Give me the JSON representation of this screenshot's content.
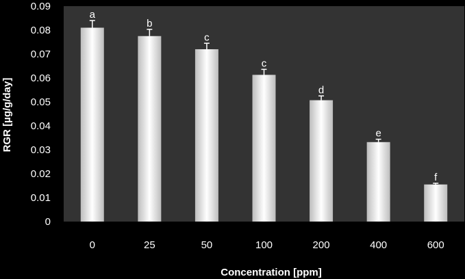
{
  "chart_data": {
    "type": "bar",
    "title": "",
    "xlabel": "Concentration [ppm]",
    "ylabel": "RGR [µg/g/day]",
    "categories": [
      "0",
      "25",
      "50",
      "100",
      "200",
      "400",
      "600"
    ],
    "values": [
      0.081,
      0.0775,
      0.072,
      0.0613,
      0.0507,
      0.0332,
      0.0155
    ],
    "errors": [
      0.003,
      0.0028,
      0.0025,
      0.0023,
      0.0018,
      0.0012,
      0.0005
    ],
    "significance_letters": [
      "a",
      "b",
      "c",
      "c",
      "d",
      "e",
      "f"
    ],
    "ylim": [
      0,
      0.09
    ],
    "yticks": [
      "0",
      "0.01",
      "0.02",
      "0.03",
      "0.04",
      "0.05",
      "0.06",
      "0.07",
      "0.08",
      "0.09"
    ],
    "grid": false,
    "legend": "none",
    "colors": {
      "background": "#000000",
      "plot_area": "#333333",
      "bar_edge": "#c8c8c8",
      "bar_center": "#ffffff",
      "text": "#ffffff"
    }
  }
}
